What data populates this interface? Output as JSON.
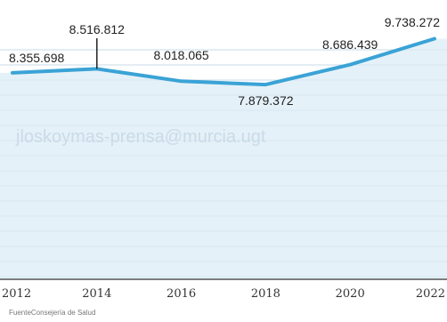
{
  "chart_data": {
    "type": "area",
    "title": "",
    "xlabel": "",
    "ylabel": "",
    "x": [
      2012,
      2014,
      2016,
      2018,
      2020,
      2022
    ],
    "series": [
      {
        "values": [
          8355698,
          8516812,
          8018065,
          7879372,
          8686439,
          9738272
        ],
        "labels": [
          "8.355.698",
          "8.516.812",
          "8.018.065",
          "7.879.372",
          "8.686.439",
          "9.738.272"
        ]
      }
    ],
    "xlim": [
      2012,
      2022
    ],
    "ylim": [
      0,
      10800000
    ],
    "tick_labels": [
      "2012",
      "2014",
      "2016",
      "2018",
      "2020",
      "2022"
    ],
    "grid": true,
    "legend": "none",
    "colors": {
      "line": "#3aa3d6",
      "fill": "#dcecf6",
      "grid": "#c8dbe8",
      "baseline": "#555555"
    }
  },
  "source": "FuenteConsejería de Salud",
  "watermark": "jloskoymas-prensa@murcia.ugt"
}
